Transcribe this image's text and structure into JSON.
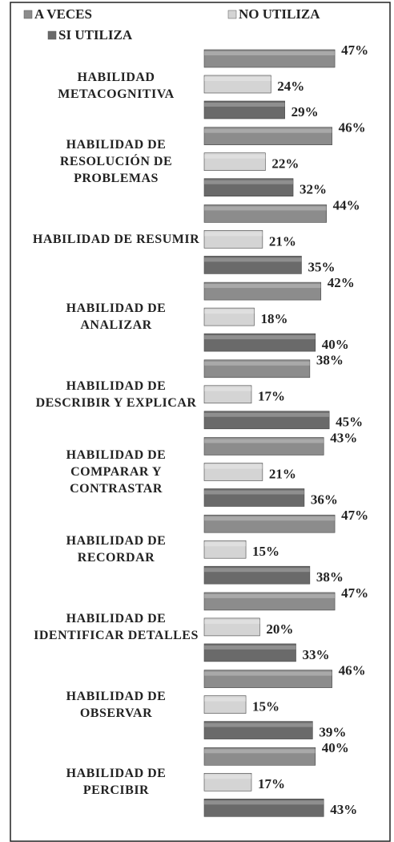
{
  "chart_data": {
    "type": "bar",
    "orientation": "horizontal",
    "categories": [
      "HABILIDAD METACOGNITIVA",
      "HABILIDAD DE RESOLUCIÓN DE PROBLEMAS",
      "HABILIDAD DE RESUMIR",
      "HABILIDAD DE ANALIZAR",
      "HABILIDAD DE DESCRIBIR Y EXPLICAR",
      "HABILIDAD DE COMPARAR Y CONTRASTAR",
      "HABILIDAD DE RECORDAR",
      "HABILIDAD DE IDENTIFICAR DETALLES",
      "HABILIDAD DE OBSERVAR",
      "HABILIDAD DE PERCIBIR"
    ],
    "series": [
      {
        "name": "A VECES",
        "color": "#8c8c8c",
        "values": [
          47,
          46,
          44,
          42,
          38,
          43,
          47,
          47,
          46,
          40
        ],
        "value_labels": [
          "47%",
          "46%",
          "44%",
          "42%",
          "38%",
          "43%",
          "47%",
          "47%",
          "46%",
          "40%"
        ]
      },
      {
        "name": "NO UTILIZA",
        "color": "#d4d4d4",
        "values": [
          24,
          22,
          21,
          18,
          17,
          21,
          15,
          20,
          15,
          17
        ],
        "value_labels": [
          "24%",
          "22%",
          "21%",
          "18%",
          "17%",
          "21%",
          "15%",
          "20%",
          "15%",
          "17%"
        ]
      },
      {
        "name": "SI UTILIZA",
        "color": "#6a6a6a",
        "values": [
          29,
          32,
          35,
          40,
          45,
          36,
          38,
          33,
          39,
          43
        ],
        "value_labels": [
          "29%",
          "32%",
          "35%",
          "40%",
          "45%",
          "36%",
          "38%",
          "33%",
          "39%",
          "43%"
        ]
      }
    ]
  }
}
